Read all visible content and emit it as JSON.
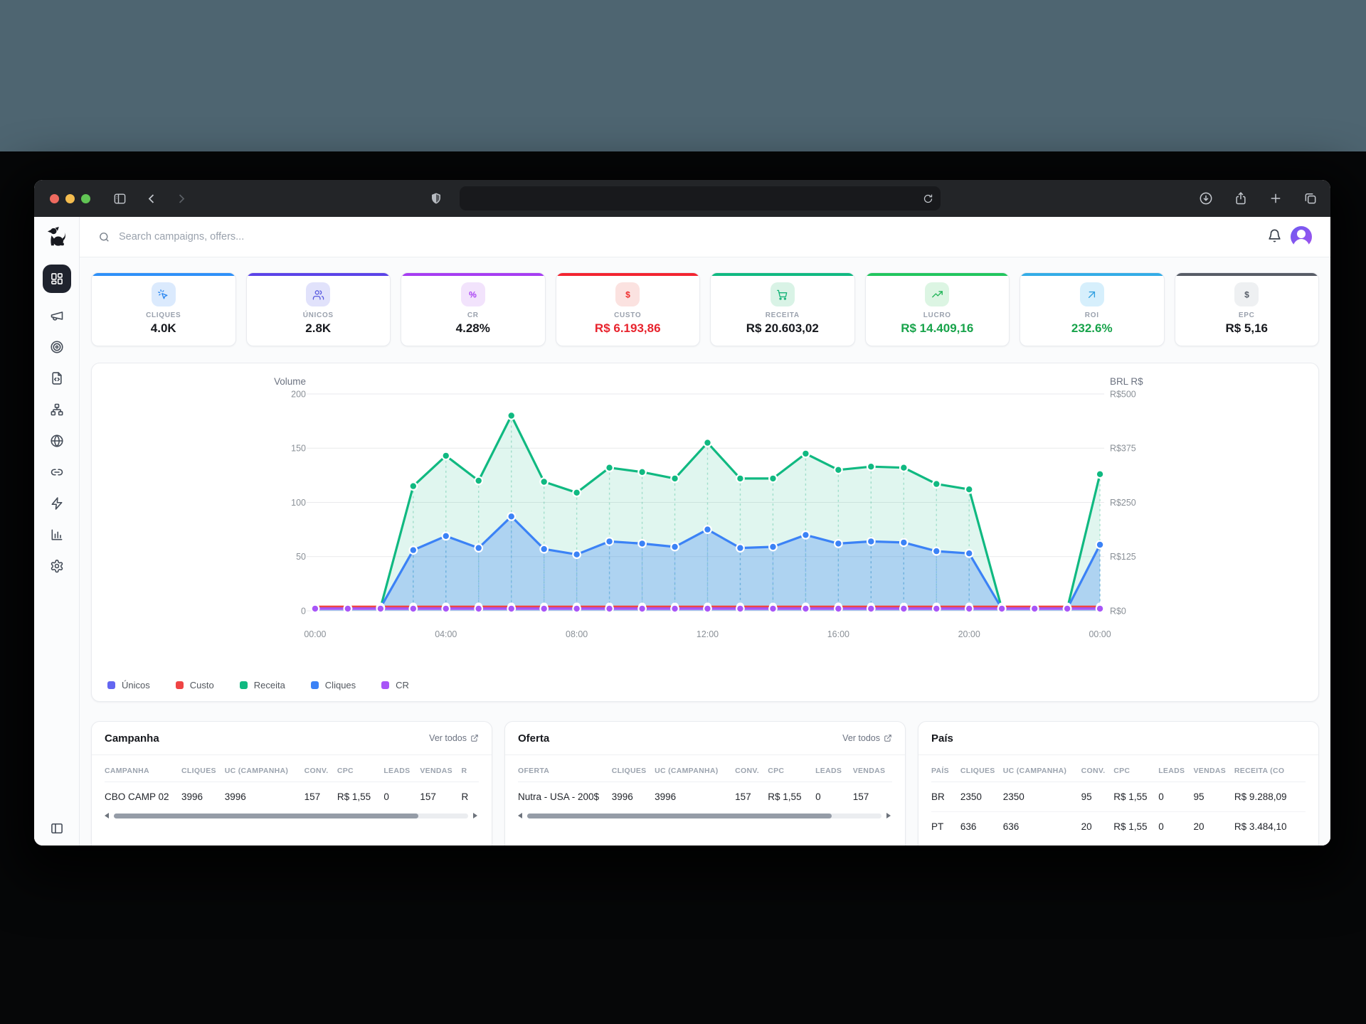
{
  "browser": {
    "address_bar_text": ""
  },
  "topbar": {
    "search_placeholder": "Search campaigns, offers..."
  },
  "sidebar": {
    "logo_icon": "dog-logo",
    "items": [
      {
        "icon": "dashboard",
        "active": true
      },
      {
        "icon": "megaphone",
        "active": false
      },
      {
        "icon": "target",
        "active": false
      },
      {
        "icon": "file-code",
        "active": false
      },
      {
        "icon": "network",
        "active": false
      },
      {
        "icon": "globe",
        "active": false
      },
      {
        "icon": "link",
        "active": false
      },
      {
        "icon": "zap",
        "active": false
      },
      {
        "icon": "bar-chart",
        "active": false
      },
      {
        "icon": "settings",
        "active": false
      }
    ],
    "collapse_icon": "panel-left"
  },
  "stat_cards": [
    {
      "id": "cliques",
      "label": "CLIQUES",
      "value": "4.0K",
      "accent": "#2e90f8",
      "icon": "cursor-click",
      "icon_bg": "#dbeafd",
      "icon_color": "#2b87f0",
      "value_color": "#16181d"
    },
    {
      "id": "unicos",
      "label": "ÚNICOS",
      "value": "2.8K",
      "accent": "#5b43e8",
      "icon": "users",
      "icon_bg": "#e1e2fb",
      "icon_color": "#5a5be0",
      "value_color": "#16181d"
    },
    {
      "id": "cr",
      "label": "CR",
      "value": "4.28%",
      "accent": "#a63df2",
      "icon": "percent",
      "icon_bg": "#f2e3fc",
      "icon_color": "#a63df2",
      "value_color": "#16181d"
    },
    {
      "id": "custo",
      "label": "CUSTO",
      "value": "R$ 6.193,86",
      "accent": "#f32430",
      "icon": "dollar",
      "icon_bg": "#fbe2e0",
      "icon_color": "#ef2d2d",
      "value_color": "#e8232d"
    },
    {
      "id": "receita",
      "label": "RECEITA",
      "value": "R$ 20.603,02",
      "accent": "#10b981",
      "icon": "cart",
      "icon_bg": "#d9f3e6",
      "icon_color": "#14b377",
      "value_color": "#16181d"
    },
    {
      "id": "lucro",
      "label": "LUCRO",
      "value": "R$ 14.409,16",
      "accent": "#22c55e",
      "icon": "trending-up",
      "icon_bg": "#dcf5e3",
      "icon_color": "#1fb456",
      "value_color": "#17a34a"
    },
    {
      "id": "roi",
      "label": "ROI",
      "value": "232.6%",
      "accent": "#33ace6",
      "icon": "arrow-up-right",
      "icon_bg": "#d6effc",
      "icon_color": "#2f9fe0",
      "value_color": "#17a34a"
    },
    {
      "id": "epc",
      "label": "EPC",
      "value": "R$ 5,16",
      "accent": "#575c66",
      "icon": "dollar",
      "icon_bg": "#eef0f2",
      "icon_color": "#565d68",
      "value_color": "#16181d"
    }
  ],
  "chart_data": {
    "type": "line",
    "left_axis": {
      "title": "Volume",
      "ticks": [
        0,
        50,
        100,
        150,
        200
      ],
      "range": [
        0,
        200
      ]
    },
    "right_axis": {
      "title": "BRL R$",
      "ticks": [
        "R$0",
        "R$125",
        "R$250",
        "R$375",
        "R$500"
      ]
    },
    "x_tick_labels": [
      "00:00",
      "04:00",
      "08:00",
      "12:00",
      "16:00",
      "20:00",
      "00:00"
    ],
    "n_points": 25,
    "grid": true,
    "legend_position": "bottom-left",
    "series": [
      {
        "name": "Únicos",
        "color": "#6366f1",
        "values": [
          3,
          3,
          3,
          3,
          3,
          3,
          3,
          3,
          3,
          3,
          3,
          3,
          3,
          3,
          3,
          3,
          3,
          3,
          3,
          3,
          3,
          3,
          3,
          3,
          3
        ]
      },
      {
        "name": "Custo",
        "color": "#ef4444",
        "values": [
          4,
          4,
          4,
          4,
          4,
          4,
          4,
          4,
          4,
          4,
          4,
          4,
          4,
          4,
          4,
          4,
          4,
          4,
          4,
          4,
          4,
          4,
          4,
          4,
          4
        ]
      },
      {
        "name": "Receita",
        "color": "#10b981",
        "fill": "rgba(16,185,129,0.13)",
        "values": [
          2,
          2,
          3,
          115,
          143,
          120,
          180,
          119,
          109,
          132,
          128,
          122,
          155,
          122,
          122,
          145,
          130,
          133,
          132,
          117,
          112,
          2,
          2,
          2,
          126
        ]
      },
      {
        "name": "Cliques",
        "color": "#3b82f6",
        "fill": "rgba(59,130,246,0.30)",
        "values": [
          2,
          2,
          3,
          56,
          69,
          58,
          87,
          57,
          52,
          64,
          62,
          59,
          75,
          58,
          59,
          70,
          62,
          64,
          63,
          55,
          53,
          2,
          2,
          2,
          61
        ]
      },
      {
        "name": "CR",
        "color": "#a855f7",
        "values": [
          2,
          2,
          2,
          2,
          2,
          2,
          2,
          2,
          2,
          2,
          2,
          2,
          2,
          2,
          2,
          2,
          2,
          2,
          2,
          2,
          2,
          2,
          2,
          2,
          2
        ]
      }
    ]
  },
  "tables": [
    {
      "title": "Campanha",
      "link_label": "Ver todos",
      "columns": [
        "CAMPANHA",
        "CLIQUES",
        "UC (CAMPANHA)",
        "CONV.",
        "CPC",
        "LEADS",
        "VENDAS",
        "R"
      ],
      "rows": [
        [
          "CBO CAMP 02",
          "3996",
          "3996",
          "157",
          "R$ 1,55",
          "0",
          "157",
          "R"
        ]
      ],
      "scrollbar": true
    },
    {
      "title": "Oferta",
      "link_label": "Ver todos",
      "columns": [
        "OFERTA",
        "CLIQUES",
        "UC (CAMPANHA)",
        "CONV.",
        "CPC",
        "LEADS",
        "VENDAS"
      ],
      "rows": [
        [
          "Nutra - USA - 200$",
          "3996",
          "3996",
          "157",
          "R$ 1,55",
          "0",
          "157"
        ]
      ],
      "scrollbar": true
    },
    {
      "title": "País",
      "link_label": "",
      "columns": [
        "PAÍS",
        "CLIQUES",
        "UC (CAMPANHA)",
        "CONV.",
        "CPC",
        "LEADS",
        "VENDAS",
        "RECEITA (CO"
      ],
      "rows": [
        [
          "BR",
          "2350",
          "2350",
          "95",
          "R$ 1,55",
          "0",
          "95",
          "R$ 9.288,09"
        ],
        [
          "PT",
          "636",
          "636",
          "20",
          "R$ 1,55",
          "0",
          "20",
          "R$ 3.484,10"
        ]
      ],
      "scrollbar": false
    }
  ]
}
